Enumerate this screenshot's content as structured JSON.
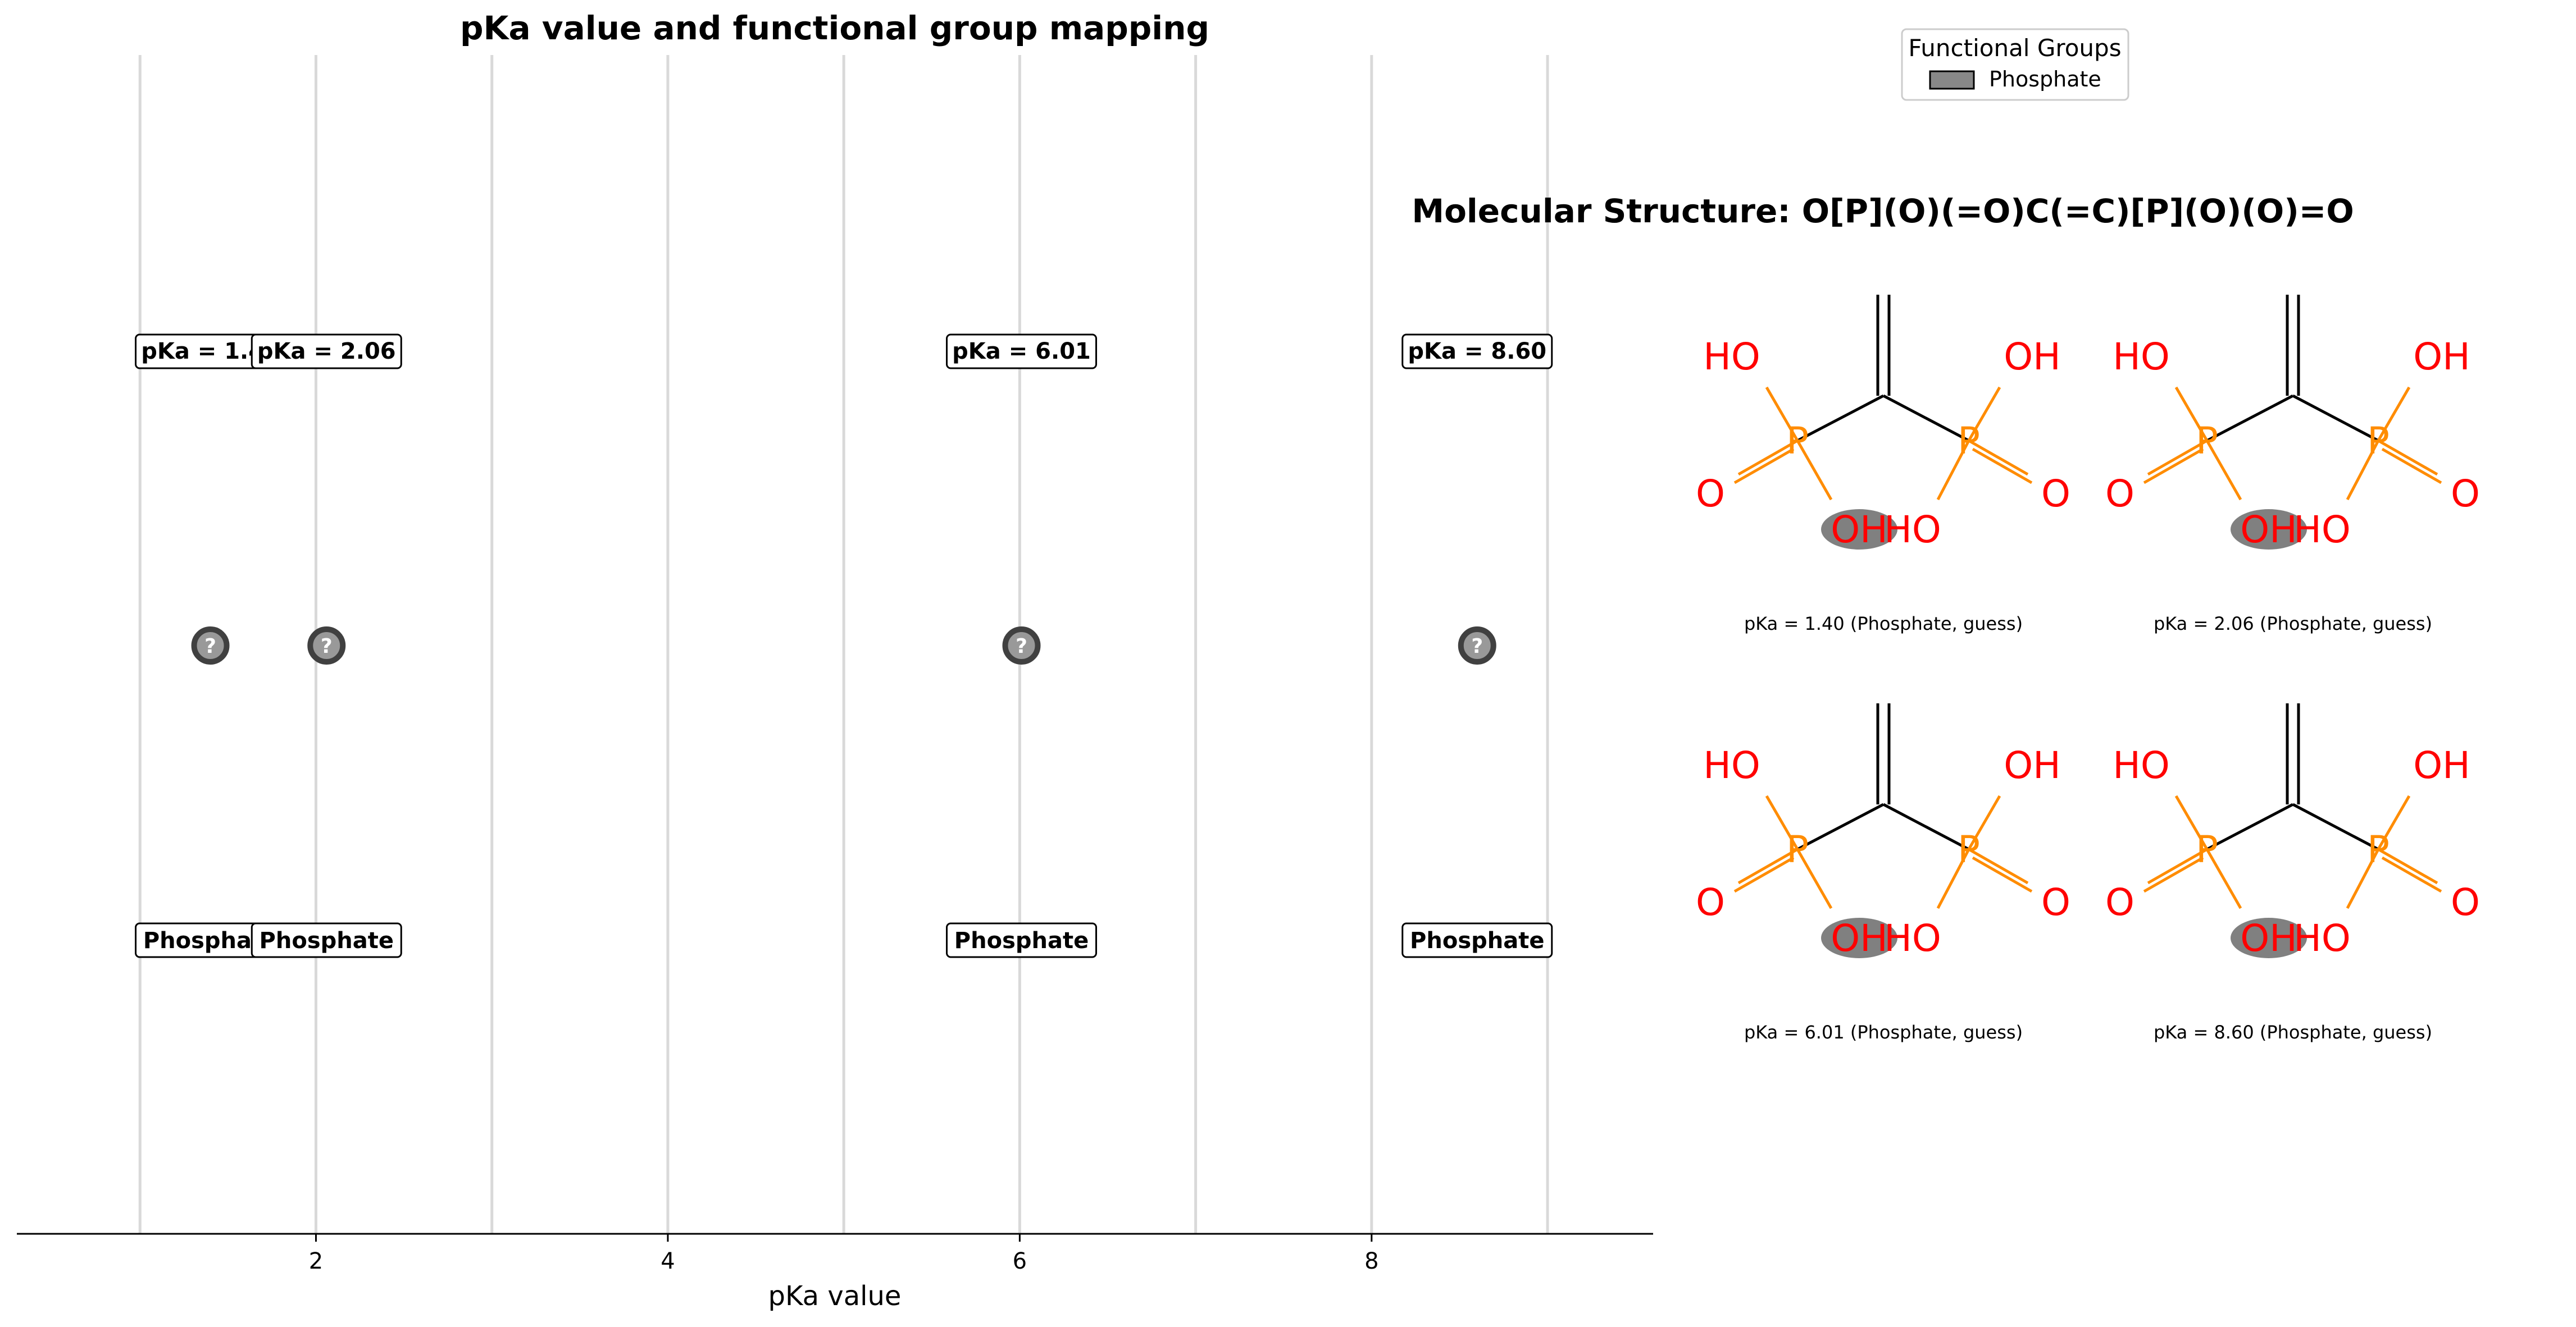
{
  "chart_data": {
    "type": "scatter",
    "title": "pKa value and functional group mapping",
    "xlabel": "pKa value",
    "xlim": [
      0.3,
      9.6
    ],
    "xticks": [
      2,
      4,
      6,
      8
    ],
    "gridlines_x": [
      1,
      2,
      3,
      4,
      5,
      6,
      7,
      8,
      9
    ],
    "grid": true,
    "marker_symbol": "?",
    "points": [
      {
        "pka": 1.4,
        "pka_label": "pKa = 1.40",
        "group_label": "Phosphate"
      },
      {
        "pka": 2.06,
        "pka_label": "pKa = 2.06",
        "group_label": "Phosphate"
      },
      {
        "pka": 6.01,
        "pka_label": "pKa = 6.01",
        "group_label": "Phosphate"
      },
      {
        "pka": 8.6,
        "pka_label": "pKa = 8.60",
        "group_label": "Phosphate"
      }
    ],
    "legend": {
      "title": "Functional Groups",
      "placement": "top-right",
      "entries": [
        {
          "label": "Phosphate",
          "color": "#888888"
        }
      ]
    }
  },
  "structure_panel": {
    "title": "Molecular Structure: O[P](O)(=O)C(=C)[P](O)(O)=O",
    "atom_labels": {
      "hydroxyl": "HO",
      "hydroxyl_right": "OH",
      "phosphorus": "P",
      "oxygen": "O",
      "hydroxyl_bottom_left": "OH",
      "hydroxyl_bottom_right": "HO"
    },
    "captions": [
      "pKa = 1.40 (Phosphate, guess)",
      "pKa = 2.06 (Phosphate, guess)",
      "pKa = 6.01 (Phosphate, guess)",
      "pKa = 8.60 (Phosphate, guess)"
    ]
  },
  "colors": {
    "phosphorus": "#ff8c00",
    "oxygen": "#ff0000",
    "bond": "#000000",
    "highlight": "#808080",
    "grid": "#d9d9d9",
    "marker_fill": "#999999",
    "marker_edge": "#404040"
  }
}
